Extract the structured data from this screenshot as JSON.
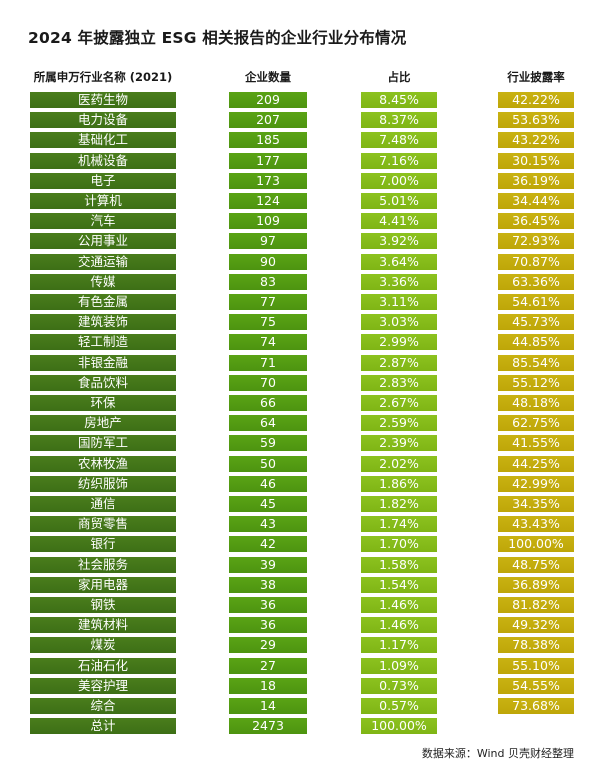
{
  "chart_data": {
    "type": "table",
    "title": "2024 年披露独立 ESG 相关报告的企业行业分布情况",
    "columns": [
      "所属申万行业名称 (2021)",
      "企业数量",
      "占比",
      "行业披露率"
    ],
    "rows": [
      {
        "industry": "医药生物",
        "count": "209",
        "share": "8.45%",
        "rate": "42.22%"
      },
      {
        "industry": "电力设备",
        "count": "207",
        "share": "8.37%",
        "rate": "53.63%"
      },
      {
        "industry": "基础化工",
        "count": "185",
        "share": "7.48%",
        "rate": "43.22%"
      },
      {
        "industry": "机械设备",
        "count": "177",
        "share": "7.16%",
        "rate": "30.15%"
      },
      {
        "industry": "电子",
        "count": "173",
        "share": "7.00%",
        "rate": "36.19%"
      },
      {
        "industry": "计算机",
        "count": "124",
        "share": "5.01%",
        "rate": "34.44%"
      },
      {
        "industry": "汽车",
        "count": "109",
        "share": "4.41%",
        "rate": "36.45%"
      },
      {
        "industry": "公用事业",
        "count": "97",
        "share": "3.92%",
        "rate": "72.93%"
      },
      {
        "industry": "交通运输",
        "count": "90",
        "share": "3.64%",
        "rate": "70.87%"
      },
      {
        "industry": "传媒",
        "count": "83",
        "share": "3.36%",
        "rate": "63.36%"
      },
      {
        "industry": "有色金属",
        "count": "77",
        "share": "3.11%",
        "rate": "54.61%"
      },
      {
        "industry": "建筑装饰",
        "count": "75",
        "share": "3.03%",
        "rate": "45.73%"
      },
      {
        "industry": "轻工制造",
        "count": "74",
        "share": "2.99%",
        "rate": "44.85%"
      },
      {
        "industry": "非银金融",
        "count": "71",
        "share": "2.87%",
        "rate": "85.54%"
      },
      {
        "industry": "食品饮料",
        "count": "70",
        "share": "2.83%",
        "rate": "55.12%"
      },
      {
        "industry": "环保",
        "count": "66",
        "share": "2.67%",
        "rate": "48.18%"
      },
      {
        "industry": "房地产",
        "count": "64",
        "share": "2.59%",
        "rate": "62.75%"
      },
      {
        "industry": "国防军工",
        "count": "59",
        "share": "2.39%",
        "rate": "41.55%"
      },
      {
        "industry": "农林牧渔",
        "count": "50",
        "share": "2.02%",
        "rate": "44.25%"
      },
      {
        "industry": "纺织服饰",
        "count": "46",
        "share": "1.86%",
        "rate": "42.99%"
      },
      {
        "industry": "通信",
        "count": "45",
        "share": "1.82%",
        "rate": "34.35%"
      },
      {
        "industry": "商贸零售",
        "count": "43",
        "share": "1.74%",
        "rate": "43.43%"
      },
      {
        "industry": "银行",
        "count": "42",
        "share": "1.70%",
        "rate": "100.00%"
      },
      {
        "industry": "社会服务",
        "count": "39",
        "share": "1.58%",
        "rate": "48.75%"
      },
      {
        "industry": "家用电器",
        "count": "38",
        "share": "1.54%",
        "rate": "36.89%"
      },
      {
        "industry": "钢铁",
        "count": "36",
        "share": "1.46%",
        "rate": "81.82%"
      },
      {
        "industry": "建筑材料",
        "count": "36",
        "share": "1.46%",
        "rate": "49.32%"
      },
      {
        "industry": "煤炭",
        "count": "29",
        "share": "1.17%",
        "rate": "78.38%"
      },
      {
        "industry": "石油石化",
        "count": "27",
        "share": "1.09%",
        "rate": "55.10%"
      },
      {
        "industry": "美容护理",
        "count": "18",
        "share": "0.73%",
        "rate": "54.55%"
      },
      {
        "industry": "综合",
        "count": "14",
        "share": "0.57%",
        "rate": "73.68%"
      }
    ],
    "total": {
      "industry": "总计",
      "count": "2473",
      "share": "100.00%",
      "rate": ""
    },
    "colors": {
      "industry": "#437619",
      "count": "#539b12",
      "share": "#85bb1a",
      "rate": "#c4ac0d"
    }
  },
  "source": "数据来源：Wind 贝壳财经整理"
}
